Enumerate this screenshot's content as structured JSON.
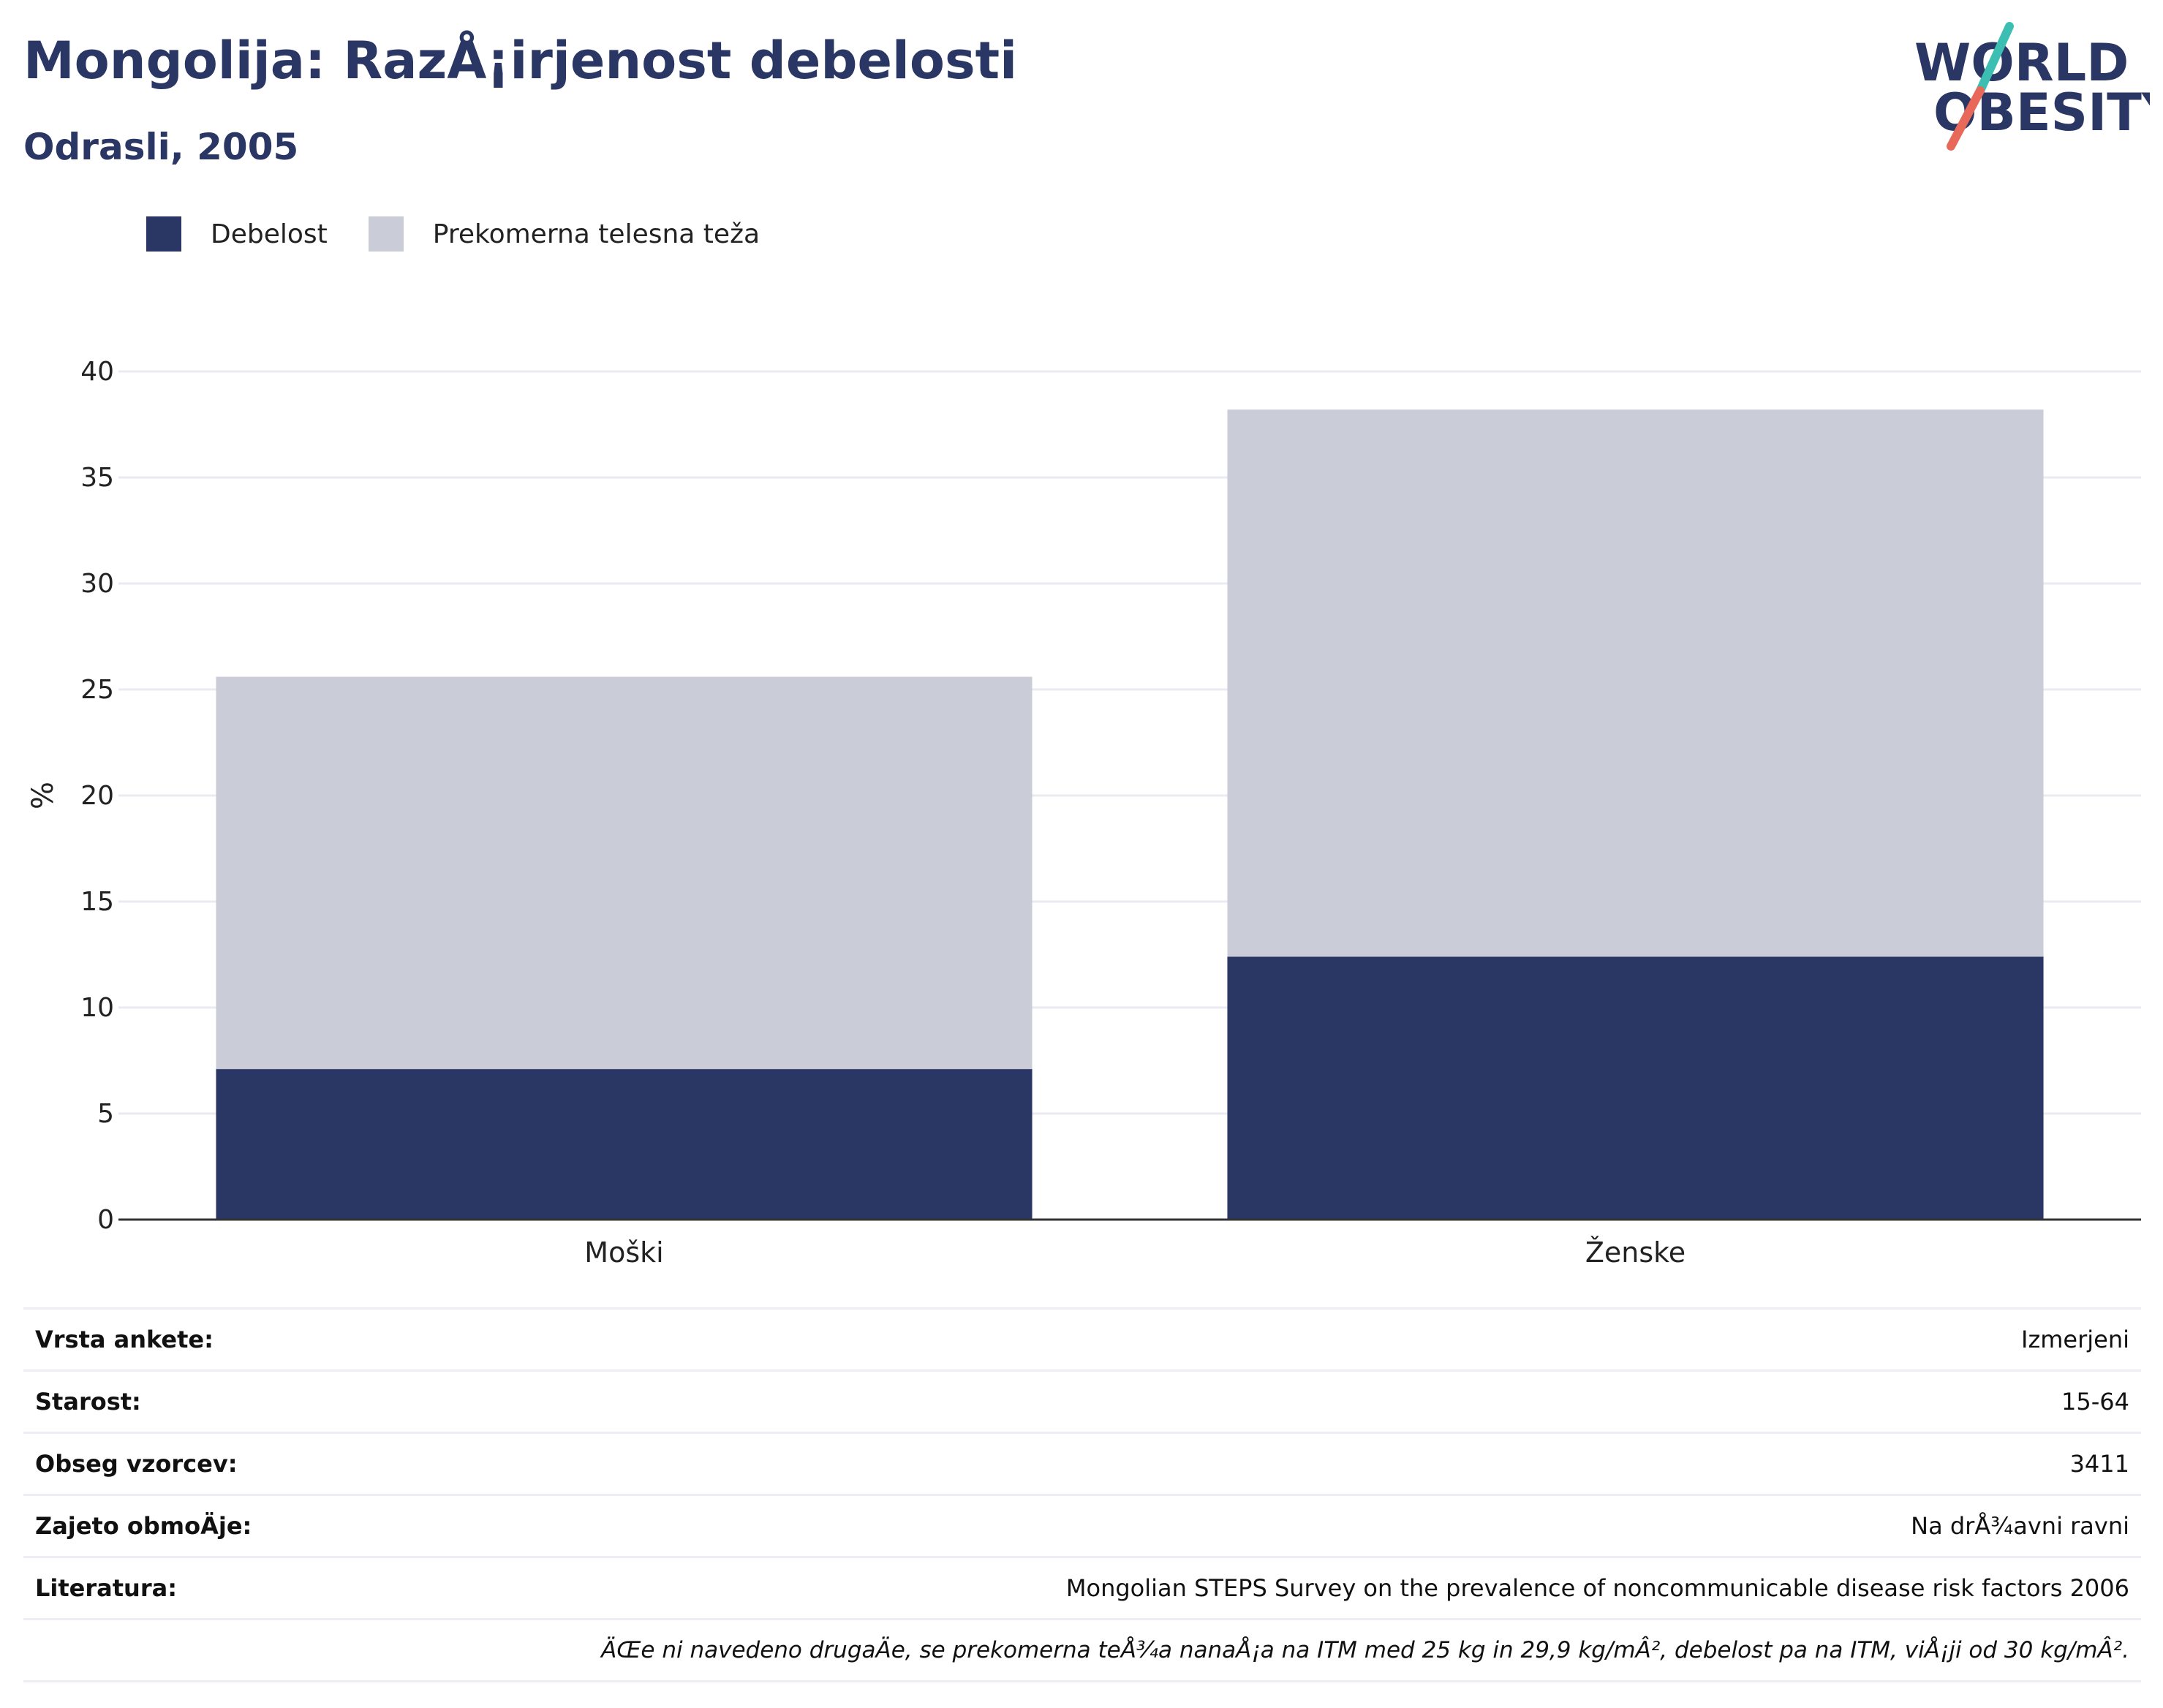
{
  "header": {
    "title": "Mongolija: RazÅ¡irjenost debelosti",
    "subtitle": "Odrasli, 2005"
  },
  "logo": {
    "line1": "WORLD",
    "line2": "OBESITY",
    "colors": {
      "text": "#2a3663",
      "slash_top": "#3cbfb2",
      "slash_bottom": "#e8695a"
    }
  },
  "colors": {
    "obesity": "#2a3663",
    "overweight": "#cacdd8",
    "grid": "#e9ebf0",
    "axis": "#333333"
  },
  "chart_data": {
    "type": "bar",
    "stacked": true,
    "categories": [
      "Moški",
      "Ženske"
    ],
    "series": [
      {
        "name": "Debelost",
        "values": [
          7.1,
          12.4
        ]
      },
      {
        "name": "Prekomerna telesna teža",
        "values": [
          18.5,
          25.8
        ]
      }
    ],
    "ylabel": "%",
    "ylim": [
      0,
      40
    ],
    "yticks": [
      "0",
      "5",
      "10",
      "15",
      "20",
      "25",
      "30",
      "35",
      "40"
    ],
    "grid": true,
    "legend_position": "top-left"
  },
  "meta": [
    {
      "label": "Vrsta ankete:",
      "value": "Izmerjeni"
    },
    {
      "label": "Starost:",
      "value": "15-64"
    },
    {
      "label": "Obseg vzorcev:",
      "value": "3411"
    },
    {
      "label": "Zajeto obmoÄje:",
      "value": "Na drÅ¾avni ravni"
    },
    {
      "label": "Literatura:",
      "value": "Mongolian STEPS Survey on the prevalence of noncommunicable disease risk factors 2006"
    }
  ],
  "note": "ÄŒe ni navedeno drugaÄe, se prekomerna teÅ¾a nanaÅ¡a na ITM med 25 kg in 29,9 kg/mÂ², debelost pa na ITM, viÅ¡ji od 30 kg/mÂ²."
}
